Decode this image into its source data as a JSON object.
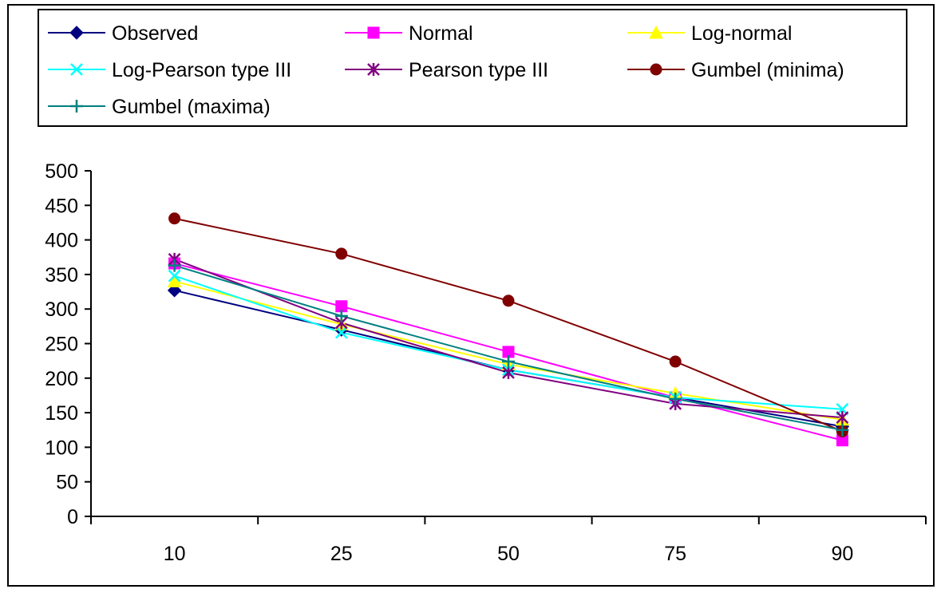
{
  "chart_data": {
    "type": "line",
    "title": "",
    "xlabel": "",
    "ylabel": "",
    "categories": [
      "10",
      "25",
      "50",
      "75",
      "90"
    ],
    "ylim": [
      0,
      500
    ],
    "y_ticks": [
      "0",
      "50",
      "100",
      "150",
      "200",
      "250",
      "300",
      "350",
      "400",
      "450",
      "500"
    ],
    "grid": false,
    "legend_position": "top",
    "series": [
      {
        "name": "Observed",
        "color": "#000080",
        "marker": "diamond",
        "values": [
          327,
          270,
          212,
          172,
          130
        ]
      },
      {
        "name": "Normal",
        "color": "#ff00ff",
        "marker": "square",
        "values": [
          366,
          304,
          238,
          172,
          110
        ]
      },
      {
        "name": "Log-normal",
        "color": "#ffff00",
        "marker": "triangle",
        "values": [
          340,
          278,
          220,
          178,
          140
        ]
      },
      {
        "name": "Log-Pearson type III",
        "color": "#00ffff",
        "marker": "x",
        "values": [
          348,
          266,
          212,
          172,
          155
        ]
      },
      {
        "name": "Pearson type III",
        "color": "#800080",
        "marker": "star",
        "values": [
          372,
          280,
          208,
          163,
          143
        ]
      },
      {
        "name": "Gumbel (minima)",
        "color": "#800000",
        "marker": "circle",
        "values": [
          431,
          380,
          312,
          224,
          123
        ]
      },
      {
        "name": "Gumbel (maxima)",
        "color": "#008080",
        "marker": "plus",
        "values": [
          363,
          290,
          224,
          170,
          125
        ]
      }
    ]
  }
}
